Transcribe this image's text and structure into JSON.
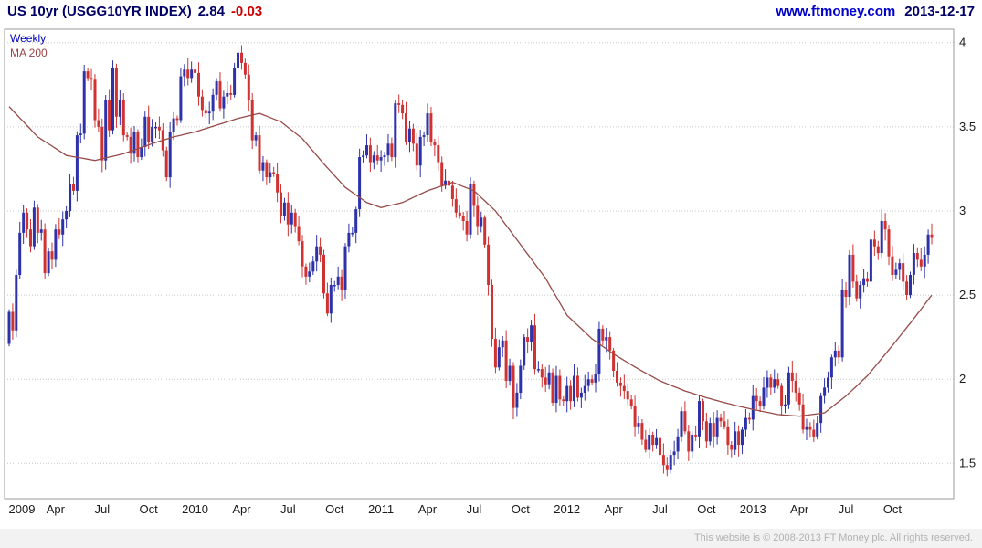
{
  "header": {
    "title": "US 10yr (USGG10YR INDEX)",
    "price": "2.84",
    "change": "-0.03",
    "website": "www.ftmoney.com",
    "date": "2013-12-17"
  },
  "legend": {
    "series1": "Weekly",
    "series2": "MA 200"
  },
  "footer": {
    "copyright": "This website is © 2008-2013 FT Money plc. All rights reserved."
  },
  "chart_data": {
    "type": "candlestick",
    "title": "US 10yr (USGG10YR INDEX)",
    "frequency": "Weekly",
    "overlay": "MA 200",
    "last_price": 2.84,
    "change": -0.03,
    "grid": true,
    "legend_position": "top-left",
    "y_axis_side": "right",
    "y_ticks": [
      1.5,
      2,
      2.5,
      3,
      3.5,
      4
    ],
    "y_domain": [
      1.29,
      4.08
    ],
    "x_ticks": [
      {
        "label": "2009",
        "i": 0
      },
      {
        "label": "Apr",
        "i": 13
      },
      {
        "label": "Jul",
        "i": 26
      },
      {
        "label": "Oct",
        "i": 39
      },
      {
        "label": "2010",
        "i": 52
      },
      {
        "label": "Apr",
        "i": 65
      },
      {
        "label": "Jul",
        "i": 78
      },
      {
        "label": "Oct",
        "i": 91
      },
      {
        "label": "2011",
        "i": 104
      },
      {
        "label": "Apr",
        "i": 117
      },
      {
        "label": "Jul",
        "i": 130
      },
      {
        "label": "Oct",
        "i": 143
      },
      {
        "label": "2012",
        "i": 156
      },
      {
        "label": "Apr",
        "i": 169
      },
      {
        "label": "Jul",
        "i": 182
      },
      {
        "label": "Oct",
        "i": 195
      },
      {
        "label": "2013",
        "i": 208
      },
      {
        "label": "Apr",
        "i": 221
      },
      {
        "label": "Jul",
        "i": 234
      },
      {
        "label": "Oct",
        "i": 247
      }
    ],
    "first_open": 2.21,
    "weekly_closes": [
      2.4,
      2.29,
      2.62,
      2.87,
      2.99,
      2.89,
      2.79,
      3.02,
      2.87,
      2.89,
      2.63,
      2.76,
      2.71,
      2.89,
      2.86,
      2.95,
      3.0,
      3.16,
      3.12,
      3.45,
      3.46,
      3.83,
      3.79,
      3.78,
      3.54,
      3.5,
      3.3,
      3.66,
      3.48,
      3.85,
      3.56,
      3.66,
      3.45,
      3.44,
      3.34,
      3.47,
      3.32,
      3.38,
      3.56,
      3.41,
      3.5,
      3.5,
      3.48,
      3.36,
      3.2,
      3.47,
      3.55,
      3.54,
      3.8,
      3.84,
      3.79,
      3.84,
      3.82,
      3.68,
      3.6,
      3.58,
      3.59,
      3.69,
      3.77,
      3.61,
      3.68,
      3.7,
      3.69,
      3.85,
      3.94,
      3.88,
      3.81,
      3.66,
      3.42,
      3.45,
      3.24,
      3.29,
      3.2,
      3.23,
      3.22,
      3.11,
      2.97,
      3.05,
      2.92,
      2.99,
      2.91,
      2.82,
      2.67,
      2.61,
      2.64,
      2.7,
      2.79,
      2.74,
      2.51,
      2.39,
      2.56,
      2.56,
      2.61,
      2.53,
      2.79,
      2.87,
      2.87,
      3.01,
      3.32,
      3.33,
      3.39,
      3.29,
      3.33,
      3.3,
      3.32,
      3.33,
      3.4,
      3.32,
      3.64,
      3.63,
      3.58,
      3.41,
      3.49,
      3.4,
      3.27,
      3.44,
      3.45,
      3.58,
      3.41,
      3.39,
      3.29,
      3.15,
      3.18,
      3.15,
      3.07,
      2.99,
      2.97,
      2.94,
      2.86,
      3.16,
      3.03,
      2.91,
      2.96,
      2.8,
      2.56,
      2.24,
      2.07,
      2.19,
      2.23,
      1.99,
      2.08,
      1.83,
      1.92,
      2.08,
      2.25,
      2.22,
      2.32,
      2.06,
      2.06,
      2.01,
      1.97,
      2.04,
      1.86,
      2.02,
      1.88,
      1.87,
      1.96,
      1.87,
      2.02,
      1.89,
      1.92,
      1.96,
      2.0,
      1.98,
      2.03,
      2.3,
      2.23,
      2.25,
      2.17,
      2.05,
      1.98,
      1.96,
      1.93,
      1.88,
      1.84,
      1.72,
      1.74,
      1.64,
      1.58,
      1.67,
      1.61,
      1.65,
      1.55,
      1.49,
      1.46,
      1.55,
      1.57,
      1.66,
      1.81,
      1.69,
      1.57,
      1.67,
      1.66,
      1.87,
      1.75,
      1.63,
      1.74,
      1.66,
      1.77,
      1.75,
      1.72,
      1.61,
      1.58,
      1.69,
      1.61,
      1.7,
      1.77,
      1.76,
      1.9,
      1.87,
      1.84,
      1.95,
      2.01,
      1.95,
      2.0,
      1.96,
      1.84,
      1.85,
      2.04,
      1.99,
      1.92,
      1.85,
      1.7,
      1.72,
      1.7,
      1.66,
      1.74,
      1.9,
      1.95,
      2.01,
      2.13,
      2.17,
      2.13,
      2.53,
      2.49,
      2.74,
      2.58,
      2.48,
      2.56,
      2.6,
      2.58,
      2.83,
      2.79,
      2.75,
      2.94,
      2.89,
      2.73,
      2.62,
      2.65,
      2.69,
      2.58,
      2.5,
      2.62,
      2.75,
      2.71,
      2.67,
      2.74,
      2.86,
      2.84
    ],
    "ma200_keypoints": [
      [
        0,
        3.62
      ],
      [
        8,
        3.44
      ],
      [
        16,
        3.33
      ],
      [
        24,
        3.3
      ],
      [
        32,
        3.34
      ],
      [
        40,
        3.4
      ],
      [
        46,
        3.44
      ],
      [
        52,
        3.47
      ],
      [
        58,
        3.51
      ],
      [
        64,
        3.55
      ],
      [
        70,
        3.58
      ],
      [
        76,
        3.53
      ],
      [
        82,
        3.43
      ],
      [
        88,
        3.28
      ],
      [
        94,
        3.14
      ],
      [
        100,
        3.05
      ],
      [
        104,
        3.02
      ],
      [
        110,
        3.05
      ],
      [
        117,
        3.12
      ],
      [
        124,
        3.17
      ],
      [
        130,
        3.12
      ],
      [
        136,
        3.0
      ],
      [
        143,
        2.8
      ],
      [
        150,
        2.6
      ],
      [
        156,
        2.38
      ],
      [
        163,
        2.24
      ],
      [
        169,
        2.15
      ],
      [
        176,
        2.06
      ],
      [
        182,
        1.99
      ],
      [
        189,
        1.93
      ],
      [
        195,
        1.89
      ],
      [
        202,
        1.85
      ],
      [
        208,
        1.82
      ],
      [
        215,
        1.79
      ],
      [
        221,
        1.78
      ],
      [
        228,
        1.8
      ],
      [
        234,
        1.9
      ],
      [
        240,
        2.02
      ],
      [
        247,
        2.2
      ],
      [
        253,
        2.36
      ],
      [
        258,
        2.5
      ]
    ],
    "colors": {
      "up": "#2d32aa",
      "down": "#d03232",
      "ma": "#964a48",
      "grid": "#c8c8c8",
      "border": "#999999",
      "axis_text": "#1a1a1a"
    }
  }
}
